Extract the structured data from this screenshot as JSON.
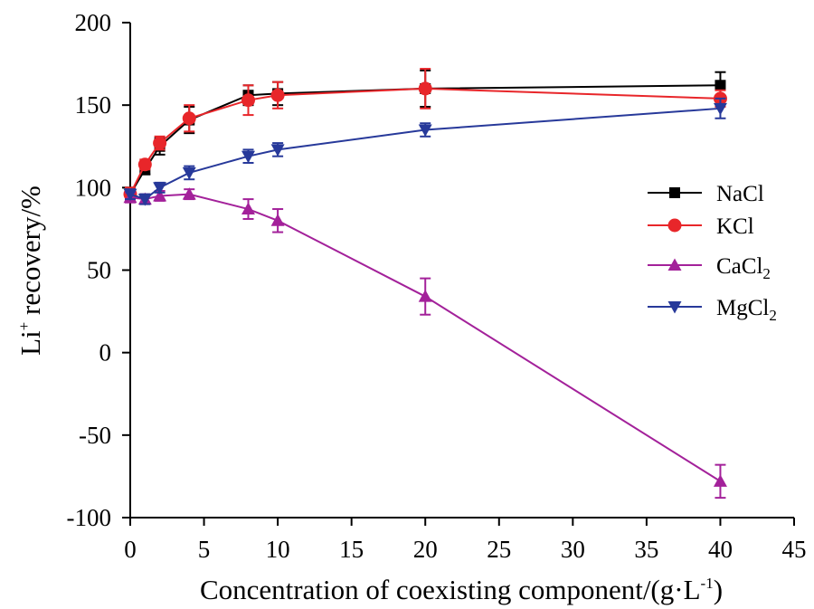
{
  "chart_data": {
    "type": "line",
    "title": "",
    "xlabel": "Concentration of coexisting component/(g·L",
    "xlabel_sup": "-1",
    "xlabel_end": ")",
    "ylabel": "Li",
    "ylabel_sup": "+",
    "ylabel_rest": " recovery/%",
    "xlim": [
      0,
      45
    ],
    "ylim": [
      -100,
      200
    ],
    "x_ticks": [
      0,
      5,
      10,
      15,
      20,
      25,
      30,
      35,
      40,
      45
    ],
    "x_tick_labels": [
      "0",
      "5",
      "10",
      "15",
      "20",
      "25",
      "30",
      "35",
      "40",
      "45"
    ],
    "y_ticks": [
      -100,
      -50,
      0,
      50,
      100,
      150,
      200
    ],
    "y_tick_labels": [
      "-100",
      "-50",
      "0",
      "50",
      "100",
      "150",
      "200"
    ],
    "grid": false,
    "legend_position": "right",
    "x": [
      0,
      1,
      2,
      4,
      8,
      10,
      20,
      40
    ],
    "series": [
      {
        "name": "NaCl",
        "name_main": "NaCl",
        "name_sub": "",
        "color": "#000000",
        "marker": "square",
        "values": [
          96,
          111,
          125,
          141,
          156,
          157,
          160,
          162
        ],
        "errors": [
          4,
          3,
          5,
          8,
          6,
          7,
          11,
          8
        ]
      },
      {
        "name": "KCl",
        "name_main": "KCl",
        "name_sub": "",
        "color": "#e8262a",
        "marker": "circle",
        "values": [
          96,
          114,
          127,
          142,
          153,
          156,
          160,
          154
        ],
        "errors": [
          4,
          3,
          4,
          8,
          9,
          8,
          12,
          5
        ]
      },
      {
        "name": "CaCl2",
        "name_main": "CaCl",
        "name_sub": "2",
        "color": "#a3219a",
        "marker": "triangle-up",
        "values": [
          94,
          93,
          95,
          96,
          87,
          80,
          34,
          -78
        ],
        "errors": [
          3,
          3,
          3,
          3,
          6,
          7,
          11,
          10
        ]
      },
      {
        "name": "MgCl2",
        "name_main": "MgCl",
        "name_sub": "2",
        "color": "#27399a",
        "marker": "triangle-down",
        "values": [
          96,
          93,
          100,
          109,
          119,
          123,
          135,
          148
        ],
        "errors": [
          3,
          3,
          3,
          4,
          4,
          4,
          4,
          6
        ]
      }
    ]
  }
}
